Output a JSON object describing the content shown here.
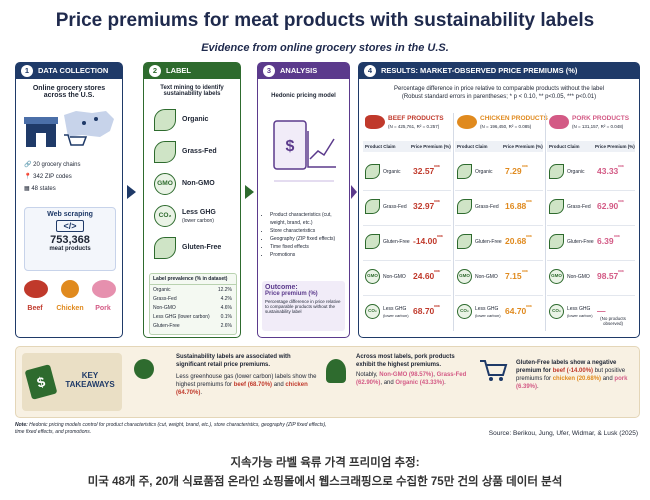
{
  "header": {
    "title": "Price premiums for meat products with sustainability labels",
    "subtitle": "Evidence from online grocery stores in the U.S."
  },
  "collection": {
    "number": "1",
    "heading": "DATA COLLECTION",
    "intro": "Online grocery stores across the U.S.",
    "facts": [
      "20 grocery chains",
      "342 ZIP codes",
      "48 states"
    ],
    "scraping": "Web scraping",
    "count": "753,368",
    "count_label": "meat products",
    "meats": [
      "Beef",
      "Chicken",
      "Pork"
    ]
  },
  "extraction": {
    "number": "2",
    "heading": "LABEL EXTRACTION",
    "intro": "Text mining to identify sustainability labels",
    "labels": [
      {
        "name": "Organic"
      },
      {
        "name": "Grass-Fed"
      },
      {
        "name": "Non-GMO",
        "icon": "GMO"
      },
      {
        "name": "Less GHG",
        "note": "(lower carbon)",
        "icon": "CO₂"
      },
      {
        "name": "Gluten-Free"
      }
    ],
    "prevalence": {
      "title": "Label prevalence (% in dataset)",
      "rows": [
        [
          "Organic",
          "12.2%"
        ],
        [
          "Grass-Fed",
          "4.2%"
        ],
        [
          "Non-GMO",
          "4.6%"
        ],
        [
          "Less GHG (lower carbon)",
          "0.1%"
        ],
        [
          "Gluten-Free",
          "2.6%"
        ]
      ]
    }
  },
  "analysis": {
    "number": "3",
    "heading": "ANALYSIS",
    "intro": "Hedonic pricing model",
    "bullets": [
      "Product characteristics (cut, weight, brand, etc.)",
      "Store characteristics",
      "Geography (ZIP fixed effects)",
      "Time fixed effects",
      "Promotions"
    ],
    "outcome_label": "Outcome:",
    "outcome": "Price premium (%)",
    "outcome_note": "Percentage difference in price relative to comparable products without the sustainability label"
  },
  "results": {
    "number": "4",
    "heading": "RESULTS: MARKET-OBSERVED PRICE PREMIUMS (%)",
    "description": [
      "Percentage difference in price relative to comparable products without the label",
      "(Robust standard errors in parentheses; * p < 0.10, ** p<0.05,  *** p<0.01)"
    ],
    "columns": [
      "Product Claim",
      "Price Premium (%)"
    ],
    "groups": [
      {
        "name": "BEEF PRODUCTS",
        "stats": "(N = 425,761, R² = 0.257)",
        "color": "#c0392b",
        "rows": [
          {
            "claim": "Organic",
            "value": "32.57",
            "stars": "***"
          },
          {
            "claim": "Grass-Fed",
            "value": "32.97",
            "stars": "***"
          },
          {
            "claim": "Gluten-Free",
            "value": "-14.00",
            "stars": "***"
          },
          {
            "claim": "Non-GMO",
            "icon": "GMO",
            "value": "24.60",
            "stars": "***"
          },
          {
            "claim": "Less GHG",
            "note": "(lower carbon)",
            "icon": "CO₂",
            "value": "68.70",
            "stars": "***"
          }
        ]
      },
      {
        "name": "CHICKEN PRODUCTS",
        "stats": "(N = 196,450, R² = 0.085)",
        "color": "#e08a1e",
        "rows": [
          {
            "claim": "Organic",
            "value": "7.29",
            "stars": "***"
          },
          {
            "claim": "Grass-Fed",
            "value": "16.88",
            "stars": "***"
          },
          {
            "claim": "Gluten-Free",
            "value": "20.68",
            "stars": "***"
          },
          {
            "claim": "Non-GMO",
            "icon": "GMO",
            "value": "7.15",
            "stars": "***"
          },
          {
            "claim": "Less GHG",
            "note": "(lower carbon)",
            "icon": "CO₂",
            "value": "64.70",
            "stars": "***"
          }
        ]
      },
      {
        "name": "PORK PRODUCTS",
        "stats": "(N = 131,157, R² = 0.048)",
        "color": "#d35a85",
        "rows": [
          {
            "claim": "Organic",
            "value": "43.33",
            "stars": "***"
          },
          {
            "claim": "Grass-Fed",
            "value": "62.90",
            "stars": "***"
          },
          {
            "claim": "Gluten-Free",
            "value": "6.39",
            "stars": "***"
          },
          {
            "claim": "Non-GMO",
            "icon": "GMO",
            "value": "98.57",
            "stars": "***"
          },
          {
            "claim": "Less GHG",
            "note": "(lower carbon)",
            "icon": "CO₂",
            "value": "—",
            "detail": "(No products observed)"
          }
        ]
      }
    ]
  },
  "takeaways": {
    "heading": "KEY TAKEAWAYS",
    "items": [
      {
        "lead": "Sustainability labels are associated with significant retail price premiums.",
        "body": [
          "Less greenhouse gas (lower carbon) labels show the highest premiums for",
          "beef (68.70%)",
          "and",
          "chicken (64.70%)",
          "."
        ]
      },
      {
        "lead": "Across most labels, pork products exhibit the highest premiums.",
        "body": [
          "Notably,",
          "Non-GMO (98.57%)",
          ",",
          "Grass-Fed (62.90%)",
          ", and",
          "Organic (43.33%)",
          "."
        ]
      },
      {
        "lead": "Gluten-Free labels show a negative premium for",
        "body": [
          "beef (-14.00%)",
          "but positive premiums for",
          "chicken (20.68%)",
          "and",
          "pork (6.39%)",
          "."
        ]
      }
    ]
  },
  "note": {
    "label": "Note:",
    "text": "Hedonic pricing models control for product characteristics (cut, weight, brand, etc.), store characteristics, geography (ZIP fixed effects), time fixed effects, and promotions."
  },
  "source": "Source: Berikou, Jung, Ufer, Widmar, & Lusk (2025)",
  "caption": [
    "지속가능 라벨 육류 가격 프리미엄 추정:",
    "미국 48개 주, 20개 식료품점 온라인 쇼핑몰에서 웹스크래핑으로 수집한 75만 건의 상품 데이터 분석"
  ]
}
